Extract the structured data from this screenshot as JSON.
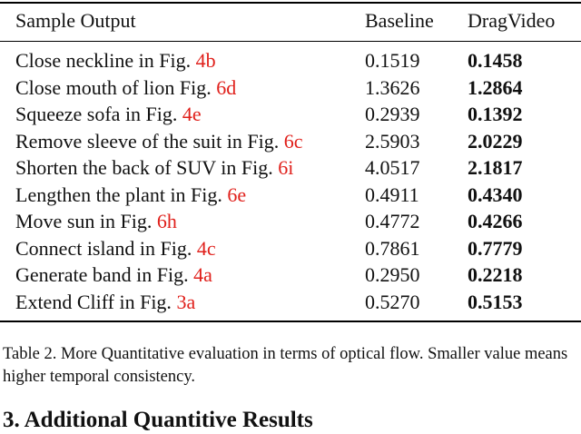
{
  "table": {
    "headers": [
      "Sample Output",
      "Baseline",
      "DragVideo"
    ],
    "rows": [
      {
        "text": "Close neckline in Fig. ",
        "ref": "4b",
        "baseline": "0.1519",
        "dragvideo": "0.1458"
      },
      {
        "text": "Close mouth of lion Fig. ",
        "ref": "6d",
        "baseline": "1.3626",
        "dragvideo": "1.2864"
      },
      {
        "text": "Squeeze sofa in Fig. ",
        "ref": "4e",
        "baseline": "0.2939",
        "dragvideo": "0.1392"
      },
      {
        "text": "Remove sleeve of the suit in Fig. ",
        "ref": "6c",
        "baseline": "2.5903",
        "dragvideo": "2.0229"
      },
      {
        "text": "Shorten the back of SUV in Fig. ",
        "ref": "6i",
        "baseline": "4.0517",
        "dragvideo": "2.1817"
      },
      {
        "text": "Lengthen the plant in Fig. ",
        "ref": "6e",
        "baseline": "0.4911",
        "dragvideo": "0.4340"
      },
      {
        "text": "Move sun in Fig. ",
        "ref": "6h",
        "baseline": "0.4772",
        "dragvideo": "0.4266"
      },
      {
        "text": "Connect island in Fig. ",
        "ref": "4c",
        "baseline": "0.7861",
        "dragvideo": "0.7779"
      },
      {
        "text": "Generate band in Fig. ",
        "ref": "4a",
        "baseline": "0.2950",
        "dragvideo": "0.2218"
      },
      {
        "text": "Extend Cliff in Fig. ",
        "ref": "3a",
        "baseline": "0.5270",
        "dragvideo": "0.5153"
      }
    ]
  },
  "caption": "Table 2.  More Quantitative evaluation in terms of optical flow. Smaller value means higher temporal consistency.",
  "next_section": "3. Additional Quantitive Results",
  "colors": {
    "reference": "#e0201b",
    "text": "#111111"
  }
}
